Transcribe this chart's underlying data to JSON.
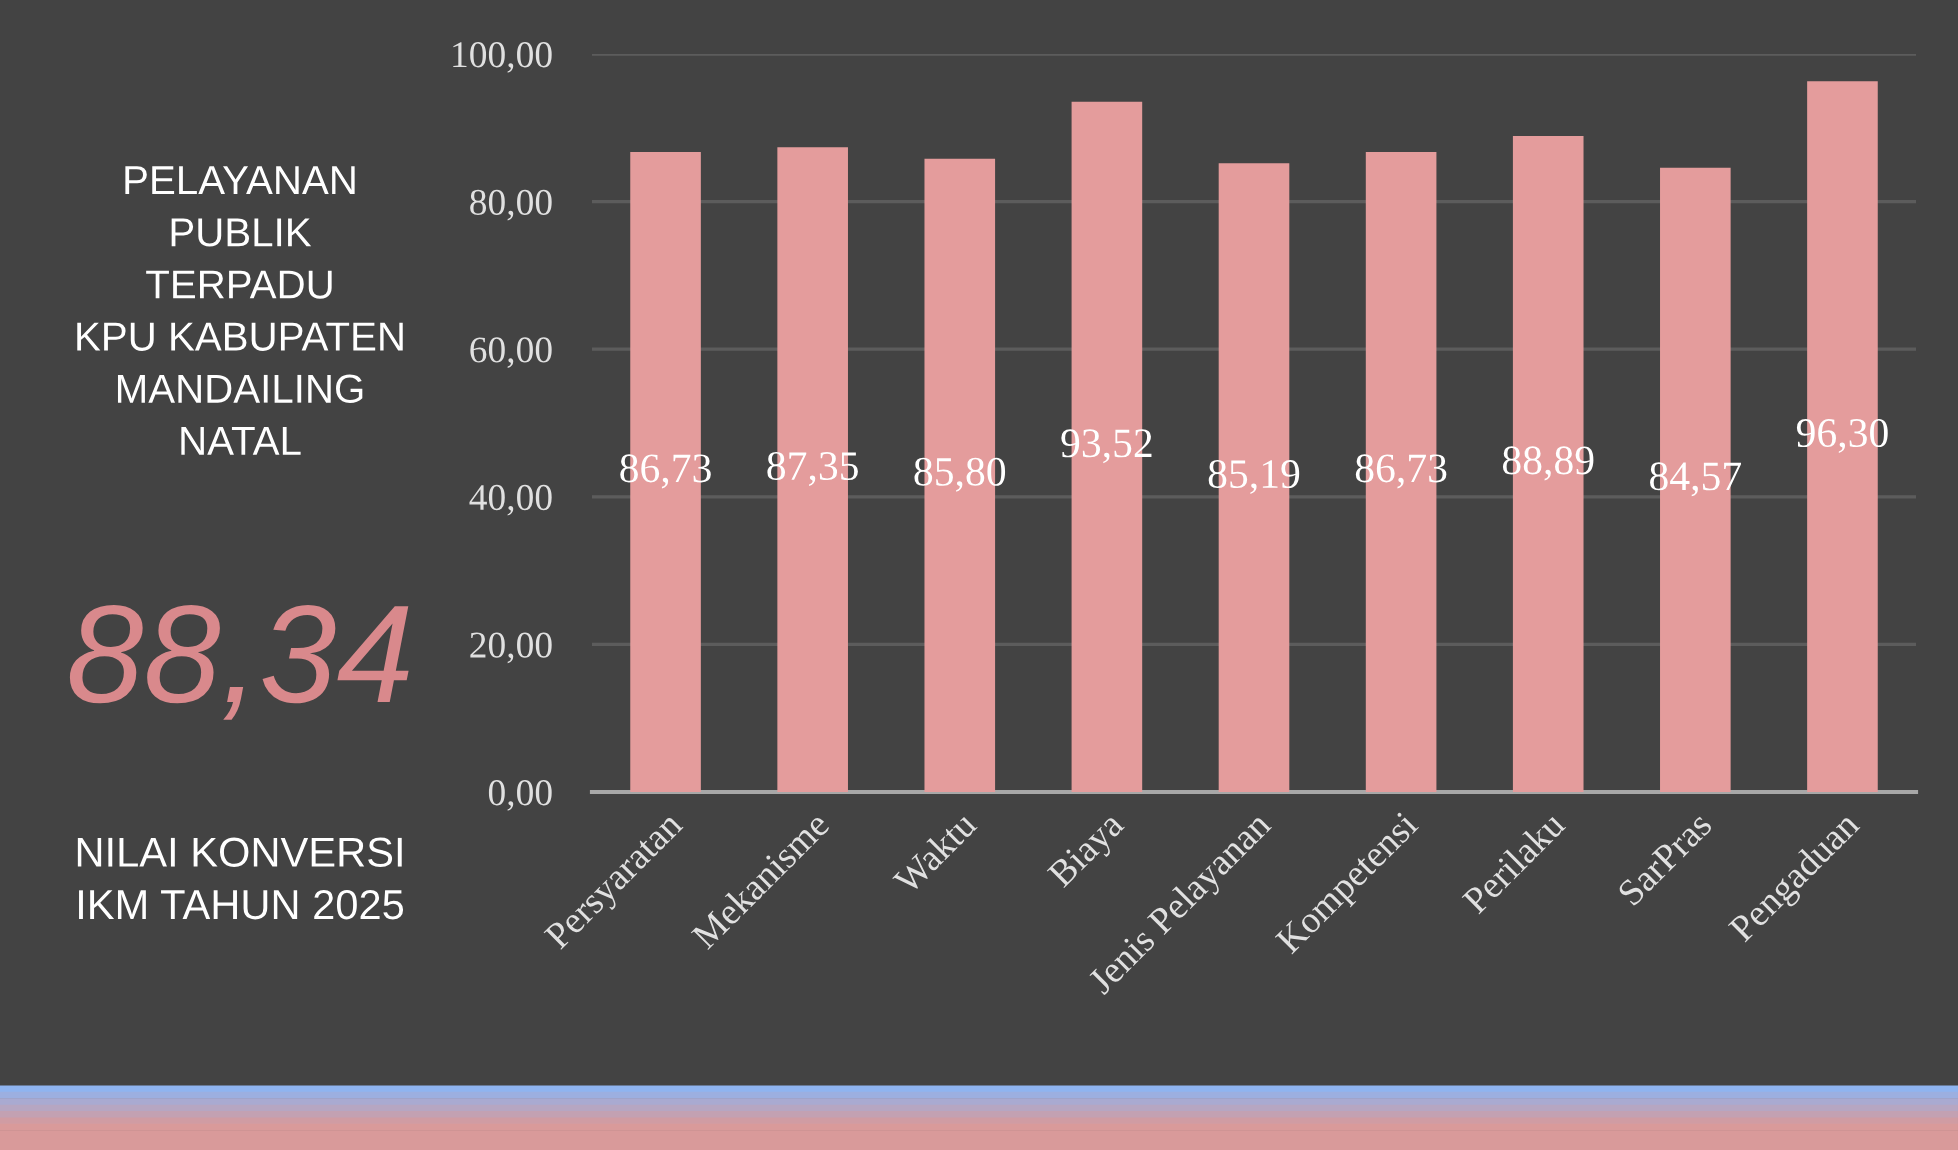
{
  "chart_data": {
    "type": "bar",
    "title": "PELAYANAN\nPUBLIK\nTERPADU\nKPU KABUPATEN\nMANDAILING\nNATAL",
    "annotations": [
      "88,34",
      "NILAI KONVERSI\nIKM TAHUN 2025"
    ],
    "categories": [
      "Persyaratan",
      "Mekanisme",
      "Waktu",
      "Biaya",
      "Jenis Pelayanan",
      "Kompetensi",
      "Perilaku",
      "SarPras",
      "Pengaduan"
    ],
    "values": [
      86.73,
      87.35,
      85.8,
      93.52,
      85.19,
      86.73,
      88.89,
      84.57,
      96.3
    ],
    "value_labels": [
      "86,73",
      "87,35",
      "85,80",
      "93,52",
      "85,19",
      "86,73",
      "88,89",
      "84,57",
      "96,30"
    ],
    "color": "#e49c9c",
    "ylim": [
      0,
      100
    ],
    "yticks": [
      {
        "value": 0,
        "label": "0,00"
      },
      {
        "value": 20,
        "label": "20,00"
      },
      {
        "value": 40,
        "label": "40,00"
      },
      {
        "value": 60,
        "label": "60,00"
      },
      {
        "value": 80,
        "label": "80,00"
      },
      {
        "value": 100,
        "label": "100,00"
      }
    ],
    "grid": "y"
  }
}
